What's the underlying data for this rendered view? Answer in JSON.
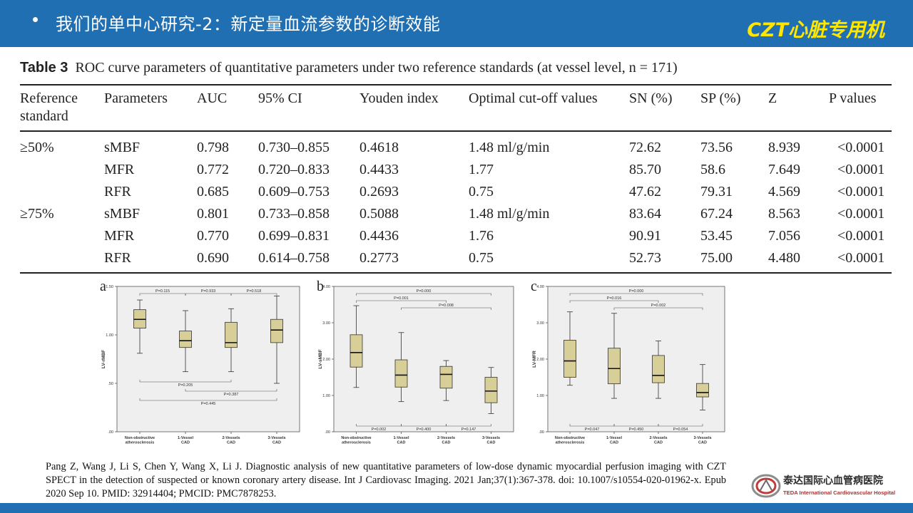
{
  "slide": {
    "title": "我们的单中心研究-2：新定量血流参数的诊断效能",
    "brand": "CZT心脏专用机"
  },
  "table": {
    "label": "Table 3",
    "caption": "ROC curve parameters of quantitative parameters under two reference standards (at vessel level, n = 171)",
    "headers": [
      "Reference standard",
      "Parameters",
      "AUC",
      "95% CI",
      "Youden index",
      "Optimal cut-off values",
      "SN (%)",
      "SP (%)",
      "Z",
      "P values"
    ],
    "rows": [
      {
        "ref": "≥50%",
        "param": "sMBF",
        "auc": "0.798",
        "ci": "0.730–0.855",
        "youden": "0.4618",
        "cutoff": "1.48 ml/g/min",
        "sn": "72.62",
        "sp": "73.56",
        "z": "8.939",
        "p": "<0.0001"
      },
      {
        "ref": "",
        "param": "MFR",
        "auc": "0.772",
        "ci": "0.720–0.833",
        "youden": "0.4433",
        "cutoff": "1.77",
        "sn": "85.70",
        "sp": "58.6",
        "z": "7.649",
        "p": "<0.0001"
      },
      {
        "ref": "",
        "param": "RFR",
        "auc": "0.685",
        "ci": "0.609–0.753",
        "youden": "0.2693",
        "cutoff": "0.75",
        "sn": "47.62",
        "sp": "79.31",
        "z": "4.569",
        "p": "<0.0001"
      },
      {
        "ref": "≥75%",
        "param": "sMBF",
        "auc": "0.801",
        "ci": "0.733–0.858",
        "youden": "0.5088",
        "cutoff": "1.48 ml/g/min",
        "sn": "83.64",
        "sp": "67.24",
        "z": "8.563",
        "p": "<0.0001"
      },
      {
        "ref": "",
        "param": "MFR",
        "auc": "0.770",
        "ci": "0.699–0.831",
        "youden": "0.4436",
        "cutoff": "1.76",
        "sn": "90.91",
        "sp": "53.45",
        "z": "7.056",
        "p": "<0.0001"
      },
      {
        "ref": "",
        "param": "RFR",
        "auc": "0.690",
        "ci": "0.614–0.758",
        "youden": "0.2773",
        "cutoff": "0.75",
        "sn": "52.73",
        "sp": "75.00",
        "z": "4.480",
        "p": "<0.0001"
      }
    ]
  },
  "citation": "Pang Z, Wang J, Li S, Chen Y, Wang X, Li J. Diagnostic analysis of new quantitative parameters of low-dose dynamic myocardial perfusion imaging with CZT SPECT in the detection of suspected or known coronary artery disease. Int J Cardiovasc Imaging. 2021 Jan;37(1):367-378. doi: 10.1007/s10554-020-01962-x. Epub 2020 Sep 10. PMID: 32914404; PMCID: PMC7878253.",
  "logo": {
    "cn": "泰达国际心血管病医院",
    "en": "TEDA International Cardiovascular Hospital"
  },
  "colors": {
    "header_bg": "#1f6fb2",
    "brand": "#ffe600",
    "box_fill": "#d8cf98",
    "plot_bg": "#efefef"
  },
  "chart_data": [
    {
      "type": "boxplot",
      "panel": "a",
      "ylabel": "LV-rMBF",
      "ylim": [
        0,
        1.5
      ],
      "yticks": [
        0,
        0.5,
        1.0,
        1.5
      ],
      "yticklabels": [
        ".00",
        ".50",
        "1.00",
        "1.50"
      ],
      "categories": [
        "Non-obstructive atherosclerosis",
        "1-Vessel CAD",
        "2-Vessels CAD",
        "3-Vessels CAD"
      ],
      "boxes": [
        {
          "min": 0.81,
          "q1": 1.07,
          "median": 1.16,
          "q3": 1.26,
          "max": 1.36
        },
        {
          "min": 0.62,
          "q1": 0.87,
          "median": 0.94,
          "q3": 1.04,
          "max": 1.25
        },
        {
          "min": 0.62,
          "q1": 0.87,
          "median": 0.92,
          "q3": 1.13,
          "max": 1.27
        },
        {
          "min": 0.5,
          "q1": 0.92,
          "median": 1.05,
          "q3": 1.16,
          "max": 1.4
        }
      ],
      "comparisons": [
        {
          "from": 0,
          "to": 1,
          "label": "P=0.115",
          "side": "top"
        },
        {
          "from": 1,
          "to": 2,
          "label": "P=0.933",
          "side": "top"
        },
        {
          "from": 2,
          "to": 3,
          "label": "P=0.518",
          "side": "top"
        },
        {
          "from": 0,
          "to": 2,
          "label": "P=0.205",
          "side": "bottom"
        },
        {
          "from": 1,
          "to": 3,
          "label": "P=0.387",
          "side": "bottom"
        },
        {
          "from": 0,
          "to": 3,
          "label": "P=0.445",
          "side": "bottom"
        }
      ]
    },
    {
      "type": "boxplot",
      "panel": "b",
      "ylabel": "LV-sMBF",
      "ylim": [
        0,
        4.0
      ],
      "yticks": [
        0,
        1,
        2,
        3,
        4
      ],
      "yticklabels": [
        ".00",
        "1.00",
        "2.00",
        "3.00",
        "4.00"
      ],
      "categories": [
        "Non-obstructive atherosclerosis",
        "1-Vessel CAD",
        "2-Vessels CAD",
        "3-Vessels CAD"
      ],
      "boxes": [
        {
          "min": 1.22,
          "q1": 1.78,
          "median": 2.18,
          "q3": 2.67,
          "max": 3.47
        },
        {
          "min": 0.83,
          "q1": 1.23,
          "median": 1.56,
          "q3": 1.98,
          "max": 2.73
        },
        {
          "min": 0.86,
          "q1": 1.2,
          "median": 1.58,
          "q3": 1.8,
          "max": 1.96
        },
        {
          "min": 0.5,
          "q1": 0.8,
          "median": 1.12,
          "q3": 1.5,
          "max": 1.77
        }
      ],
      "comparisons": [
        {
          "from": 0,
          "to": 3,
          "label": "P=0.000",
          "side": "top"
        },
        {
          "from": 0,
          "to": 2,
          "label": "P=0.001",
          "side": "top"
        },
        {
          "from": 1,
          "to": 3,
          "label": "P=0.008",
          "side": "top"
        },
        {
          "from": 0,
          "to": 1,
          "label": "P=0.002",
          "side": "bottom"
        },
        {
          "from": 1,
          "to": 2,
          "label": "P=0.400",
          "side": "bottom"
        },
        {
          "from": 2,
          "to": 3,
          "label": "P=0.147",
          "side": "bottom"
        }
      ]
    },
    {
      "type": "boxplot",
      "panel": "c",
      "ylabel": "LV-MFR",
      "ylim": [
        0,
        4.0
      ],
      "yticks": [
        0,
        1,
        2,
        3,
        4
      ],
      "yticklabels": [
        ".00",
        "1.00",
        "2.00",
        "3.00",
        "4.00"
      ],
      "categories": [
        "Non-obstructive atherosclerosis",
        "1-Vessel CAD",
        "2-Vessels CAD",
        "3-Vessels CAD"
      ],
      "boxes": [
        {
          "min": 1.28,
          "q1": 1.5,
          "median": 1.95,
          "q3": 2.52,
          "max": 3.3
        },
        {
          "min": 0.92,
          "q1": 1.32,
          "median": 1.74,
          "q3": 2.3,
          "max": 3.26
        },
        {
          "min": 0.92,
          "q1": 1.35,
          "median": 1.55,
          "q3": 2.1,
          "max": 2.5
        },
        {
          "min": 0.6,
          "q1": 0.96,
          "median": 1.08,
          "q3": 1.33,
          "max": 1.85
        }
      ],
      "comparisons": [
        {
          "from": 0,
          "to": 3,
          "label": "P=0.000",
          "side": "top"
        },
        {
          "from": 0,
          "to": 2,
          "label": "P=0.016",
          "side": "top"
        },
        {
          "from": 1,
          "to": 3,
          "label": "P=0.002",
          "side": "top"
        },
        {
          "from": 0,
          "to": 1,
          "label": "P=0.047",
          "side": "bottom"
        },
        {
          "from": 1,
          "to": 2,
          "label": "P=0.450",
          "side": "bottom"
        },
        {
          "from": 2,
          "to": 3,
          "label": "P=0.054",
          "side": "bottom"
        }
      ]
    }
  ]
}
